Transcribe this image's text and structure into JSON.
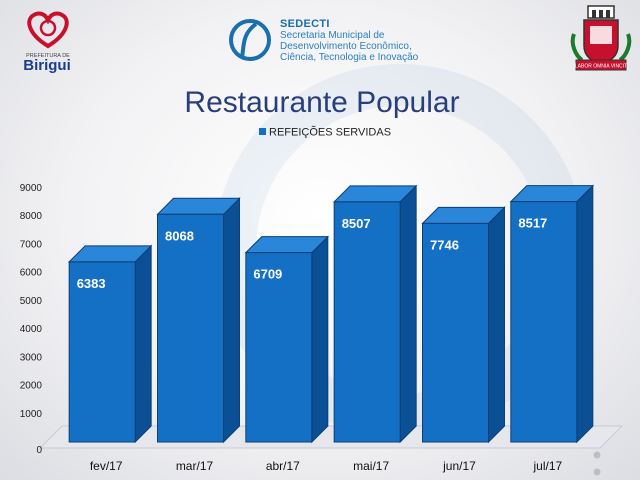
{
  "logos": {
    "left_text": "PREFEITURA DE",
    "left_name": "Birigui",
    "center_name": "SEDECTI",
    "center_lines": [
      "Secretaria Municipal de",
      "Desenvolvimento Econômico,",
      "Ciência, Tecnologia e Inovação"
    ],
    "right_banner": "LABOR OMNIA VINCIT"
  },
  "colors": {
    "bar_front": "#1470c4",
    "bar_side": "#0b4f94",
    "bar_top": "#2a86d8",
    "bar_edge": "#0a3f78",
    "title": "#2a3f7a"
  },
  "chart_data": {
    "type": "bar",
    "title": "Restaurante Popular",
    "xlabel": "",
    "ylabel": "",
    "categories": [
      "fev/17",
      "mar/17",
      "abr/17",
      "mai/17",
      "jun/17",
      "jul/17"
    ],
    "series": [
      {
        "name": "REFEIÇÕES SERVIDAS",
        "values": [
          6383,
          8068,
          6709,
          8507,
          7746,
          8517
        ]
      }
    ],
    "ylim": [
      0,
      9000
    ],
    "yticks": [
      0,
      1000,
      2000,
      3000,
      4000,
      5000,
      6000,
      7000,
      8000,
      9000
    ],
    "legend": "top-center",
    "grid": false,
    "style": "3d-column"
  }
}
